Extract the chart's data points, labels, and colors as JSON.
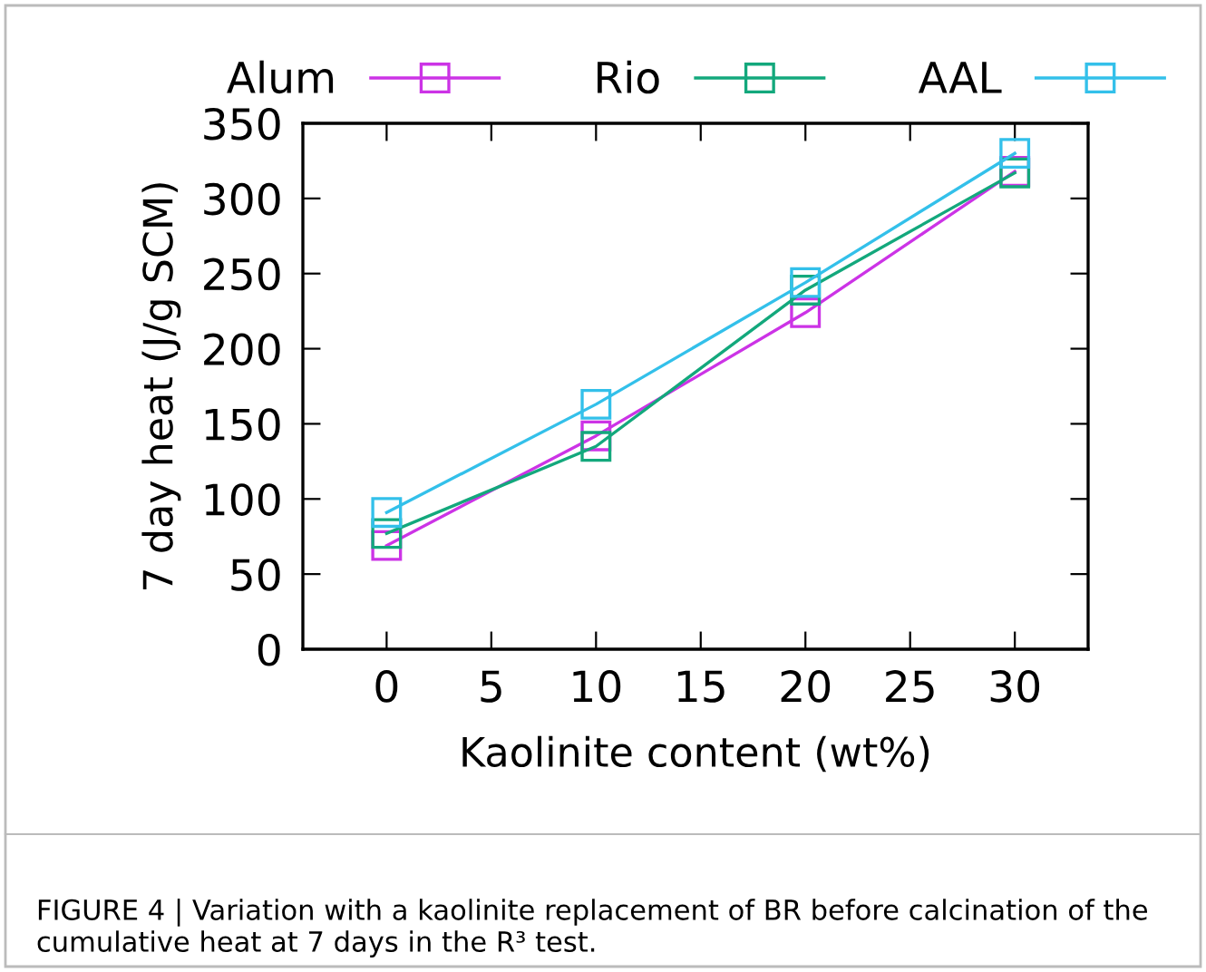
{
  "chart_data": {
    "type": "line",
    "xlabel": "Kaolinite content (wt%)",
    "ylabel": "7 day heat (J/g SCM)",
    "x": [
      0,
      10,
      20,
      30
    ],
    "series": [
      {
        "name": "Alum",
        "color": "#cc33e6",
        "values": [
          69,
          142,
          224,
          318
        ]
      },
      {
        "name": "Rio",
        "color": "#13a87c",
        "values": [
          77,
          135,
          239,
          317
        ]
      },
      {
        "name": "AAL",
        "color": "#33c0ea",
        "values": [
          91,
          163,
          244,
          330
        ]
      }
    ],
    "xlim": [
      -4,
      33.5
    ],
    "xticks": [
      0,
      5,
      10,
      15,
      20,
      25,
      30
    ],
    "ylim": [
      0,
      350
    ],
    "yticks": [
      0,
      50,
      100,
      150,
      200,
      250,
      300,
      350
    ],
    "marker": "square",
    "legend": "top",
    "grid": false,
    "annotations": [
      "FIGURE 4 | Variation with a kaolinite replacement of BR before calcination of the cumulative heat at 7 days in the R³ test."
    ]
  }
}
